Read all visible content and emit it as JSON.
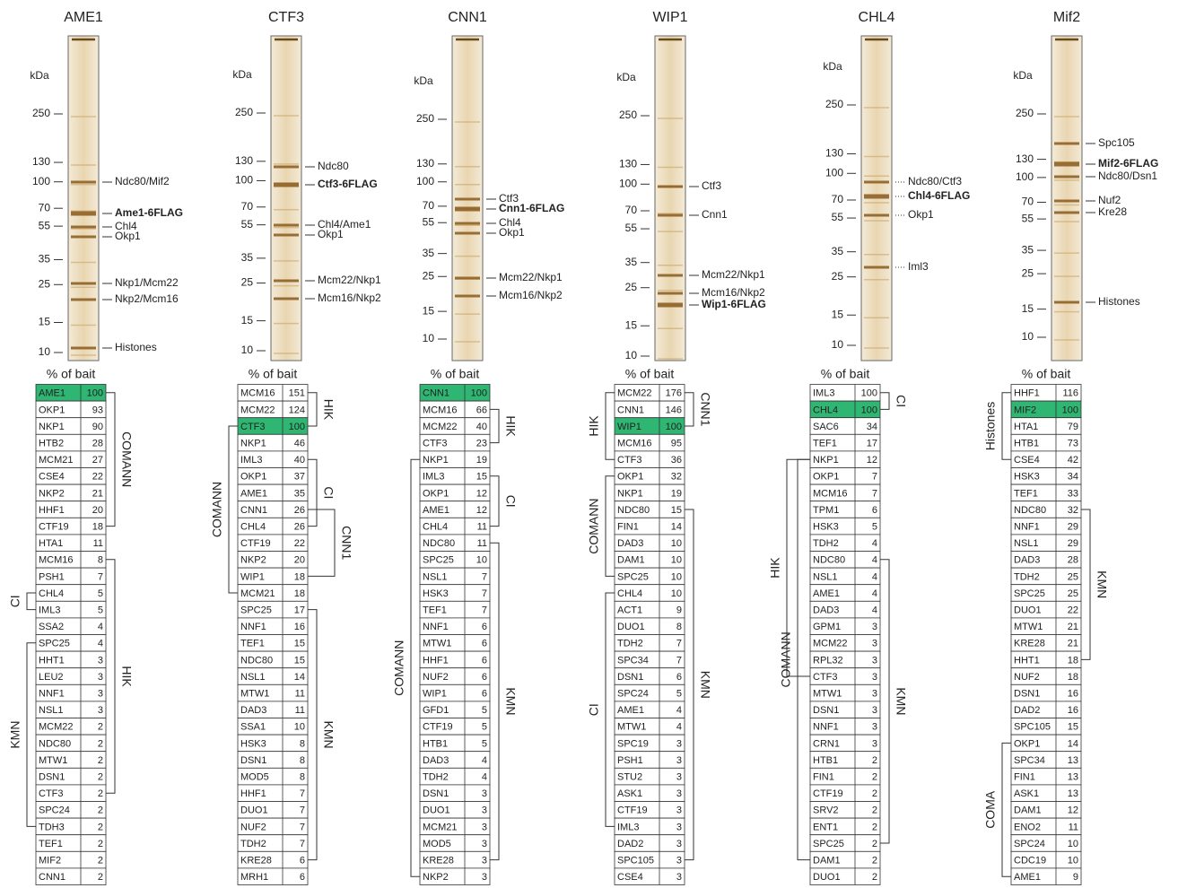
{
  "panels": [
    {
      "title": "AME1",
      "kda_label": "kDa",
      "markers": [
        250,
        130,
        100,
        70,
        55,
        35,
        25,
        15,
        10
      ],
      "bands": [
        {
          "label": "Ndc80/Mif2"
        },
        {
          "label": "Ame1-6FLAG",
          "bold": true
        },
        {
          "label": "Chl4"
        },
        {
          "label": "Okp1"
        },
        {
          "label": "Nkp1/Mcm22"
        },
        {
          "label": "Nkp2/Mcm16"
        },
        {
          "label": "Histones"
        }
      ],
      "table_header": "% of bait",
      "rows": [
        [
          "AME1",
          100
        ],
        [
          "OKP1",
          93
        ],
        [
          "NKP1",
          90
        ],
        [
          "HTB2",
          28
        ],
        [
          "MCM21",
          27
        ],
        [
          "CSE4",
          22
        ],
        [
          "NKP2",
          21
        ],
        [
          "HHF1",
          20
        ],
        [
          "CTF19",
          18
        ],
        [
          "HTA1",
          11
        ],
        [
          "MCM16",
          8
        ],
        [
          "PSH1",
          7
        ],
        [
          "CHL4",
          5
        ],
        [
          "IML3",
          5
        ],
        [
          "SSA2",
          4
        ],
        [
          "SPC25",
          4
        ],
        [
          "HHT1",
          3
        ],
        [
          "LEU2",
          3
        ],
        [
          "NNF1",
          3
        ],
        [
          "NSL1",
          3
        ],
        [
          "MCM22",
          2
        ],
        [
          "NDC80",
          2
        ],
        [
          "MTW1",
          2
        ],
        [
          "DSN1",
          2
        ],
        [
          "CTF3",
          2
        ],
        [
          "SPC24",
          2
        ],
        [
          "TDH3",
          2
        ],
        [
          "TEF1",
          2
        ],
        [
          "MIF2",
          2
        ],
        [
          "CNN1",
          2
        ]
      ],
      "groups": [
        {
          "label": "COMANN"
        },
        {
          "label": "HIK"
        },
        {
          "label": "CI"
        },
        {
          "label": "KMN"
        }
      ]
    },
    {
      "title": "CTF3",
      "kda_label": "kDa",
      "markers": [
        250,
        130,
        100,
        70,
        55,
        35,
        25,
        15,
        10
      ],
      "bands": [
        {
          "label": "Ndc80"
        },
        {
          "label": "Ctf3-6FLAG",
          "bold": true
        },
        {
          "label": "Chl4/Ame1"
        },
        {
          "label": "Okp1"
        },
        {
          "label": "Mcm22/Nkp1"
        },
        {
          "label": "Mcm16/Nkp2"
        }
      ],
      "table_header": "% of bait",
      "rows": [
        [
          "MCM16",
          151
        ],
        [
          "MCM22",
          124
        ],
        [
          "CTF3",
          100
        ],
        [
          "NKP1",
          46
        ],
        [
          "IML3",
          40
        ],
        [
          "OKP1",
          37
        ],
        [
          "AME1",
          35
        ],
        [
          "CNN1",
          26
        ],
        [
          "CHL4",
          26
        ],
        [
          "CTF19",
          22
        ],
        [
          "NKP2",
          20
        ],
        [
          "WIP1",
          18
        ],
        [
          "MCM21",
          18
        ],
        [
          "SPC25",
          17
        ],
        [
          "NNF1",
          16
        ],
        [
          "TEF1",
          15
        ],
        [
          "NDC80",
          15
        ],
        [
          "NSL1",
          14
        ],
        [
          "MTW1",
          11
        ],
        [
          "DAD3",
          11
        ],
        [
          "SSA1",
          10
        ],
        [
          "HSK3",
          8
        ],
        [
          "DSN1",
          8
        ],
        [
          "MOD5",
          8
        ],
        [
          "HHF1",
          7
        ],
        [
          "DUO1",
          7
        ],
        [
          "NUF2",
          7
        ],
        [
          "TDH2",
          7
        ],
        [
          "KRE28",
          6
        ],
        [
          "MRH1",
          6
        ]
      ],
      "groups": [
        {
          "label": "HIK"
        },
        {
          "label": "COMANN"
        },
        {
          "label": "CI"
        },
        {
          "label": "CNN1"
        },
        {
          "label": "KMN"
        }
      ]
    },
    {
      "title": "CNN1",
      "kda_label": "kDa",
      "markers": [
        250,
        130,
        100,
        70,
        55,
        35,
        25,
        15,
        10
      ],
      "bands": [
        {
          "label": "Ctf3"
        },
        {
          "label": "Cnn1-6FLAG",
          "bold": true
        },
        {
          "label": "Chl4"
        },
        {
          "label": "Okp1"
        },
        {
          "label": "Mcm22/Nkp1"
        },
        {
          "label": "Mcm16/Nkp2"
        }
      ],
      "table_header": "% of bait",
      "rows": [
        [
          "CNN1",
          100
        ],
        [
          "MCM16",
          66
        ],
        [
          "MCM22",
          40
        ],
        [
          "CTF3",
          23
        ],
        [
          "NKP1",
          19
        ],
        [
          "IML3",
          15
        ],
        [
          "OKP1",
          12
        ],
        [
          "AME1",
          12
        ],
        [
          "CHL4",
          11
        ],
        [
          "NDC80",
          11
        ],
        [
          "SPC25",
          10
        ],
        [
          "NSL1",
          7
        ],
        [
          "HSK3",
          7
        ],
        [
          "TEF1",
          7
        ],
        [
          "NNF1",
          6
        ],
        [
          "MTW1",
          6
        ],
        [
          "HHF1",
          6
        ],
        [
          "NUF2",
          6
        ],
        [
          "WIP1",
          6
        ],
        [
          "GFD1",
          5
        ],
        [
          "CTF19",
          5
        ],
        [
          "HTB1",
          5
        ],
        [
          "DAD3",
          4
        ],
        [
          "TDH2",
          4
        ],
        [
          "DSN1",
          3
        ],
        [
          "DUO1",
          3
        ],
        [
          "MCM21",
          3
        ],
        [
          "MOD5",
          3
        ],
        [
          "KRE28",
          3
        ],
        [
          "NKP2",
          3
        ]
      ],
      "groups": [
        {
          "label": "HIK"
        },
        {
          "label": "CI"
        },
        {
          "label": "KMN"
        },
        {
          "label": "COMANN"
        }
      ]
    },
    {
      "title": "WIP1",
      "kda_label": "kDa",
      "markers": [
        250,
        130,
        100,
        70,
        55,
        35,
        25,
        15,
        10
      ],
      "bands": [
        {
          "label": "Ctf3"
        },
        {
          "label": "Cnn1"
        },
        {
          "label": "Mcm22/Nkp1"
        },
        {
          "label": "Mcm16/Nkp2"
        },
        {
          "label": "Wip1-6FLAG",
          "bold": true
        }
      ],
      "table_header": "% of bait",
      "rows": [
        [
          "MCM22",
          176
        ],
        [
          "CNN1",
          146
        ],
        [
          "WIP1",
          100
        ],
        [
          "MCM16",
          95
        ],
        [
          "CTF3",
          36
        ],
        [
          "OKP1",
          32
        ],
        [
          "NKP1",
          19
        ],
        [
          "NDC80",
          15
        ],
        [
          "FIN1",
          14
        ],
        [
          "DAD3",
          10
        ],
        [
          "DAM1",
          10
        ],
        [
          "SPC25",
          10
        ],
        [
          "CHL4",
          10
        ],
        [
          "ACT1",
          9
        ],
        [
          "DUO1",
          8
        ],
        [
          "TDH2",
          7
        ],
        [
          "SPC34",
          7
        ],
        [
          "DSN1",
          6
        ],
        [
          "SPC24",
          5
        ],
        [
          "AME1",
          4
        ],
        [
          "MTW1",
          4
        ],
        [
          "SPC19",
          3
        ],
        [
          "PSH1",
          3
        ],
        [
          "STU2",
          3
        ],
        [
          "ASK1",
          3
        ],
        [
          "CTF19",
          3
        ],
        [
          "IML3",
          3
        ],
        [
          "DAD2",
          3
        ],
        [
          "SPC105",
          3
        ],
        [
          "CSE4",
          3
        ]
      ],
      "groups": [
        {
          "label": "HIK"
        },
        {
          "label": "CNN1"
        },
        {
          "label": "COMANN"
        },
        {
          "label": "KMN"
        },
        {
          "label": "CI"
        }
      ]
    },
    {
      "title": "CHL4",
      "kda_label": "kDa",
      "markers": [
        250,
        130,
        100,
        70,
        55,
        35,
        25,
        15,
        10
      ],
      "bands": [
        {
          "label": "Ndc80/Ctf3"
        },
        {
          "label": "Chl4-6FLAG",
          "bold": true
        },
        {
          "label": "Okp1"
        },
        {
          "label": "Iml3"
        }
      ],
      "table_header": "% of bait",
      "rows": [
        [
          "IML3",
          100
        ],
        [
          "CHL4",
          100
        ],
        [
          "SAC6",
          34
        ],
        [
          "TEF1",
          17
        ],
        [
          "NKP1",
          12
        ],
        [
          "OKP1",
          7
        ],
        [
          "MCM16",
          7
        ],
        [
          "TPM1",
          6
        ],
        [
          "HSK3",
          5
        ],
        [
          "TDH2",
          4
        ],
        [
          "NDC80",
          4
        ],
        [
          "NSL1",
          4
        ],
        [
          "AME1",
          4
        ],
        [
          "DAD3",
          4
        ],
        [
          "GPM1",
          3
        ],
        [
          "MCM22",
          3
        ],
        [
          "RPL32",
          3
        ],
        [
          "CTF3",
          3
        ],
        [
          "MTW1",
          3
        ],
        [
          "DSN1",
          3
        ],
        [
          "NNF1",
          3
        ],
        [
          "CRN1",
          3
        ],
        [
          "HTB1",
          2
        ],
        [
          "FIN1",
          2
        ],
        [
          "CTF19",
          2
        ],
        [
          "SRV2",
          2
        ],
        [
          "ENT1",
          2
        ],
        [
          "SPC25",
          2
        ],
        [
          "DAM1",
          2
        ],
        [
          "DUO1",
          2
        ]
      ],
      "groups": [
        {
          "label": "CI"
        },
        {
          "label": "HIK"
        },
        {
          "label": "KMN"
        },
        {
          "label": "COMANN"
        }
      ]
    },
    {
      "title": "Mif2",
      "kda_label": "kDa",
      "markers": [
        250,
        130,
        100,
        70,
        55,
        35,
        25,
        15,
        10
      ],
      "bands": [
        {
          "label": "Spc105"
        },
        {
          "label": "Mif2-6FLAG",
          "bold": true
        },
        {
          "label": "Ndc80/Dsn1"
        },
        {
          "label": "Nuf2"
        },
        {
          "label": "Kre28"
        },
        {
          "label": "Histones"
        }
      ],
      "table_header": "% of bait",
      "rows": [
        [
          "HHF1",
          116
        ],
        [
          "MIF2",
          100
        ],
        [
          "HTA1",
          79
        ],
        [
          "HTB1",
          73
        ],
        [
          "CSE4",
          42
        ],
        [
          "HSK3",
          34
        ],
        [
          "TEF1",
          33
        ],
        [
          "NDC80",
          32
        ],
        [
          "NNF1",
          29
        ],
        [
          "NSL1",
          29
        ],
        [
          "DAD3",
          28
        ],
        [
          "TDH2",
          25
        ],
        [
          "SPC25",
          25
        ],
        [
          "DUO1",
          22
        ],
        [
          "MTW1",
          21
        ],
        [
          "KRE28",
          21
        ],
        [
          "HHT1",
          18
        ],
        [
          "NUF2",
          18
        ],
        [
          "DSN1",
          16
        ],
        [
          "DAD2",
          16
        ],
        [
          "SPC105",
          15
        ],
        [
          "OKP1",
          14
        ],
        [
          "SPC34",
          13
        ],
        [
          "FIN1",
          13
        ],
        [
          "ASK1",
          13
        ],
        [
          "DAM1",
          12
        ],
        [
          "ENO2",
          11
        ],
        [
          "SPC24",
          10
        ],
        [
          "CDC19",
          10
        ],
        [
          "AME1",
          9
        ]
      ],
      "groups": [
        {
          "label": "Histones"
        },
        {
          "label": "KMN"
        },
        {
          "label": "COMA"
        }
      ]
    }
  ]
}
